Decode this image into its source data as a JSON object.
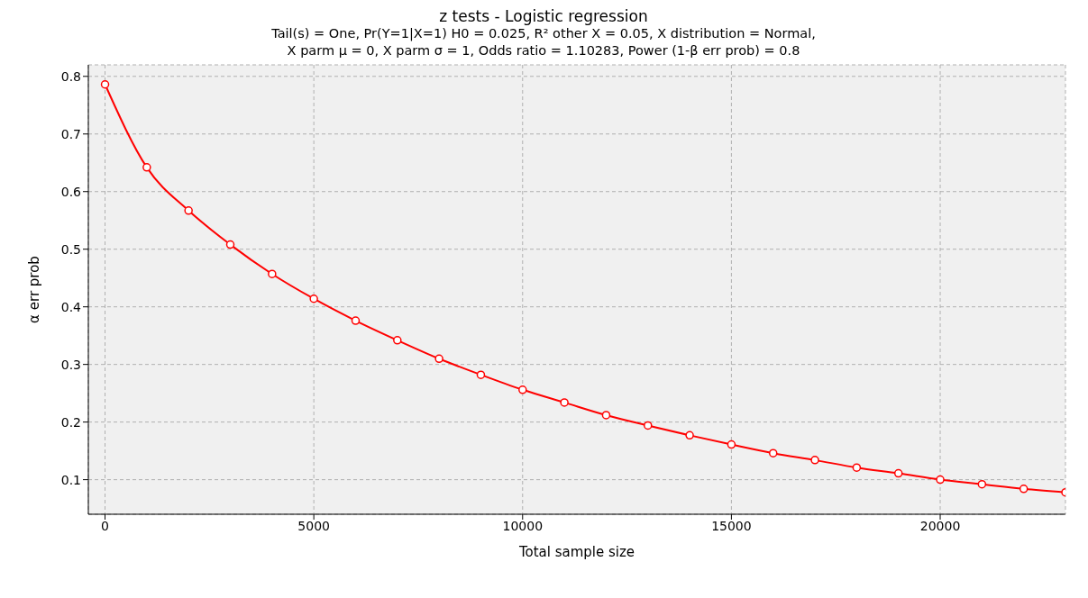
{
  "chart_data": {
    "type": "line",
    "title": "z tests - Logistic regression",
    "subtitle": "Tail(s) = One, Pr(Y=1|X=1) H0 = 0.025, R² other X = 0.05, X distribution = Normal,\nX parm μ = 0, X parm σ = 1, Odds ratio = 1.10283, Power (1-β err prob) = 0.8",
    "xlabel": "Total sample size",
    "ylabel": "α err prob",
    "x": [
      0,
      1000,
      2000,
      3000,
      4000,
      5000,
      6000,
      7000,
      8000,
      9000,
      10000,
      11000,
      12000,
      13000,
      14000,
      15000,
      16000,
      17000,
      18000,
      19000,
      20000,
      21000,
      22000,
      23000
    ],
    "series": [
      {
        "color": "#ff0000",
        "values": [
          0.786,
          0.642,
          0.567,
          0.508,
          0.457,
          0.414,
          0.376,
          0.342,
          0.31,
          0.282,
          0.256,
          0.234,
          0.212,
          0.194,
          0.177,
          0.161,
          0.146,
          0.134,
          0.121,
          0.111,
          0.1,
          0.092,
          0.084,
          0.078
        ]
      }
    ],
    "xlim": [
      -400,
      23000
    ],
    "xticks": [
      0,
      5000,
      10000,
      15000,
      20000
    ],
    "ylim": [
      0.04,
      0.82
    ],
    "yticks": [
      0.1,
      0.2,
      0.3,
      0.4,
      0.5,
      0.6,
      0.7,
      0.8
    ],
    "grid": true,
    "marker": "circle",
    "line_style": "solid"
  }
}
